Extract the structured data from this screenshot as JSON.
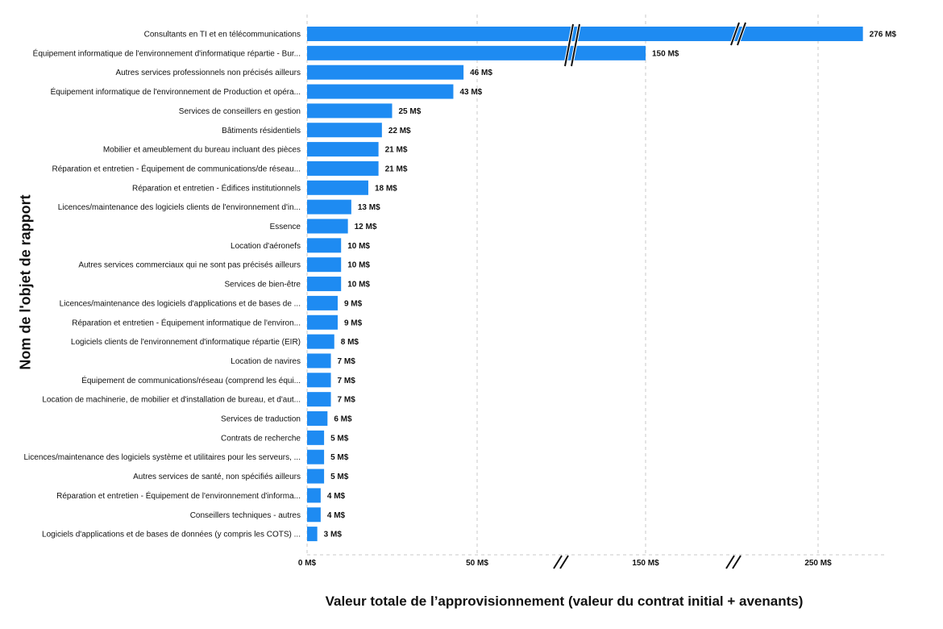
{
  "chart_data": {
    "type": "bar",
    "orientation": "horizontal",
    "title": "",
    "ylabel": "Nom de l'objet de rapport",
    "xlabel": "Valeur totale de l’approvisionnement (valeur du contrat initial + avenants)",
    "x_axis_break": true,
    "xticks": [
      "0 M$",
      "50 M$",
      "150 M$",
      "250 M$"
    ],
    "grid": "vertical dashed",
    "categories": [
      "Consultants en TI et en télécommunications",
      "Équipement informatique de l'environnement d'informatique répartie - Bur...",
      "Autres services professionnels non précisés ailleurs",
      "Équipement informatique de l'environnement de Production et opéra...",
      "Services de conseillers en gestion",
      "Bâtiments résidentiels",
      "Mobilier et ameublement du bureau incluant des pièces",
      "Réparation et entretien - Équipement de communications/de réseau...",
      "Réparation et entretien - Édifices institutionnels",
      "Licences/maintenance des logiciels clients de l'environnement d'in...",
      "Essence",
      "Location d'aéronefs",
      "Autres services commerciaux qui ne sont pas précisés ailleurs",
      "Services de bien-être",
      "Licences/maintenance des logiciels d'applications et de bases de ...",
      "Réparation et entretien - Équipement informatique de l'environ...",
      "Logiciels clients de l'environnement d'informatique répartie (EIR)",
      "Location de navires",
      "Équipement de communications/réseau (comprend les équi...",
      "Location de machinerie, de mobilier et d'installation de bureau, et d'aut...",
      "Services de traduction",
      "Contrats de recherche",
      "Licences/maintenance des logiciels système et utilitaires pour les serveurs, ...",
      "Autres services de santé, non spécifiés ailleurs",
      "Réparation et entretien - Équipement de l'environnement d'informa...",
      "Conseillers techniques - autres",
      "Logiciels d'applications et de bases de données (y compris les COTS) ..."
    ],
    "values": [
      276,
      150,
      46,
      43,
      25,
      22,
      21,
      21,
      18,
      13,
      12,
      10,
      10,
      10,
      9,
      9,
      8,
      7,
      7,
      7,
      6,
      5,
      5,
      5,
      4,
      4,
      3
    ],
    "value_labels": [
      "276 M$",
      "150 M$",
      "46 M$",
      "43 M$",
      "25 M$",
      "22 M$",
      "21 M$",
      "21 M$",
      "18 M$",
      "13 M$",
      "12 M$",
      "10 M$",
      "10 M$",
      "10 M$",
      "9 M$",
      "9 M$",
      "8 M$",
      "7 M$",
      "7 M$",
      "7 M$",
      "6 M$",
      "5 M$",
      "5 M$",
      "5 M$",
      "4 M$",
      "4 M$",
      "3 M$"
    ],
    "colors": {
      "bar": "#1e8bf2",
      "grid": "#c8c8c8",
      "text": "#111111"
    }
  }
}
